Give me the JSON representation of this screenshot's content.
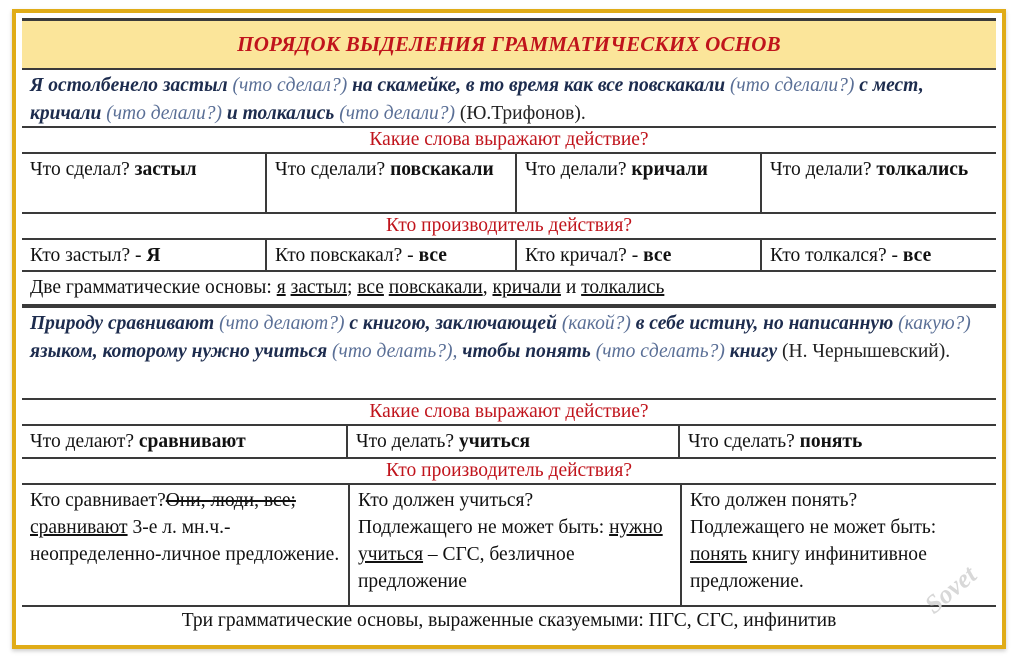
{
  "title": "ПОРЯДОК ВЫДЕЛЕНИЯ ГРАММАТИЧЕСКИХ ОСНОВ",
  "s1": {
    "p1": "Я остолбенело застыл",
    "q1": "(что сделал?)",
    "p2": "на скамейке, в то время как все повскакали",
    "q2": "(что сделали?)",
    "p3": "с мест, кричали",
    "q3": "(что делали?)",
    "p4": "и толкались",
    "q4": "(что делали?)",
    "author": "(Ю.Трифонов)."
  },
  "h_action": "Какие слова выражают действие?",
  "h_agent": "Кто производитель действия?",
  "r1": [
    {
      "q": "Что сделал?",
      "a": "застыл"
    },
    {
      "q": "Что сделали?",
      "a": "повскакали"
    },
    {
      "q": "Что делали?",
      "a": "кричали"
    },
    {
      "q": "Что делали?",
      "a": "толкались"
    }
  ],
  "r2": [
    {
      "q": "Кто застыл? -",
      "a": "Я"
    },
    {
      "q": "Кто повскакал? -",
      "a": "все"
    },
    {
      "q": "Кто кричал? -",
      "a": "все"
    },
    {
      "q": "Кто толкался? -",
      "a": "все"
    }
  ],
  "two": {
    "lead": "Две грамматические основы:",
    "w1": "я",
    "w2": "застыл",
    "w3": "все",
    "w4": "повскакали",
    "w5": "кричали",
    "and": "и",
    "w6": "толкались"
  },
  "s2": {
    "p1": "Природу сравнивают",
    "q1": "(что делают?)",
    "p2": "с книгою, заключающей",
    "q2": "(какой?)",
    "p3": "в себе истину, но написанную",
    "q3": "(какую?)",
    "p4": "языком, которому нужно учиться",
    "q4": "(что делать?),",
    "p5": "чтобы понять",
    "q5": "(что сделать?)",
    "p6": "книгу",
    "author": "(Н. Чернышевский)."
  },
  "r3": [
    {
      "q": "Что делают?",
      "a": "сравнивают"
    },
    {
      "q": "Что делать?",
      "a": "учиться"
    },
    {
      "q": "Что сделать?",
      "a": "понять"
    }
  ],
  "r4": {
    "c1": {
      "q": "Кто сравнивает?",
      "strike": "Они, люди, все;",
      "u": "сравнивают",
      "rest": "3-е л. мн.ч.- неопределенно-личное предложение."
    },
    "c2": {
      "q": "Кто должен учиться?",
      "t": "Подлежащего не может быть:",
      "u": "нужно учиться",
      "rest": "– СГС, безличное предложение"
    },
    "c3": {
      "q": "Кто должен понять?",
      "t": "Подлежащего не может быть:",
      "u": "понять",
      "rest": "книгу инфинитивное предложение."
    }
  },
  "footer": "Три грамматические основы, выраженные сказуемыми: ПГС, СГС, инфинитив",
  "watermark": "Sovet club",
  "colors": {
    "border": "#e0ac18",
    "title_bg": "#fbe59a",
    "red": "#c0141c"
  }
}
